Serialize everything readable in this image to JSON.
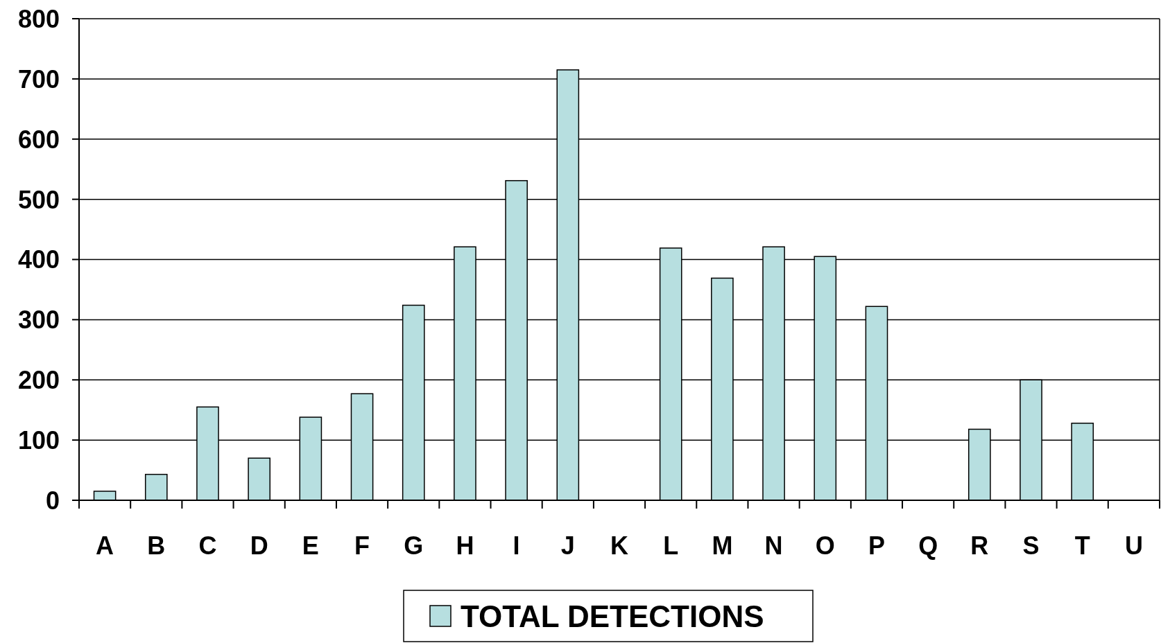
{
  "chart_data": {
    "type": "bar",
    "categories": [
      "A",
      "B",
      "C",
      "D",
      "E",
      "F",
      "G",
      "H",
      "I",
      "J",
      "K",
      "L",
      "M",
      "N",
      "O",
      "P",
      "Q",
      "R",
      "S",
      "T",
      "U"
    ],
    "series": [
      {
        "name": "TOTAL DETECTIONS",
        "color": "#b7dfe0",
        "values": [
          15,
          43,
          155,
          70,
          138,
          177,
          324,
          421,
          531,
          715,
          0,
          419,
          369,
          421,
          405,
          322,
          0,
          118,
          200,
          128,
          0
        ]
      }
    ],
    "ylim": [
      0,
      800
    ],
    "yticks": [
      0,
      100,
      200,
      300,
      400,
      500,
      600,
      700,
      800
    ],
    "grid": "y",
    "legend": "bottom"
  }
}
